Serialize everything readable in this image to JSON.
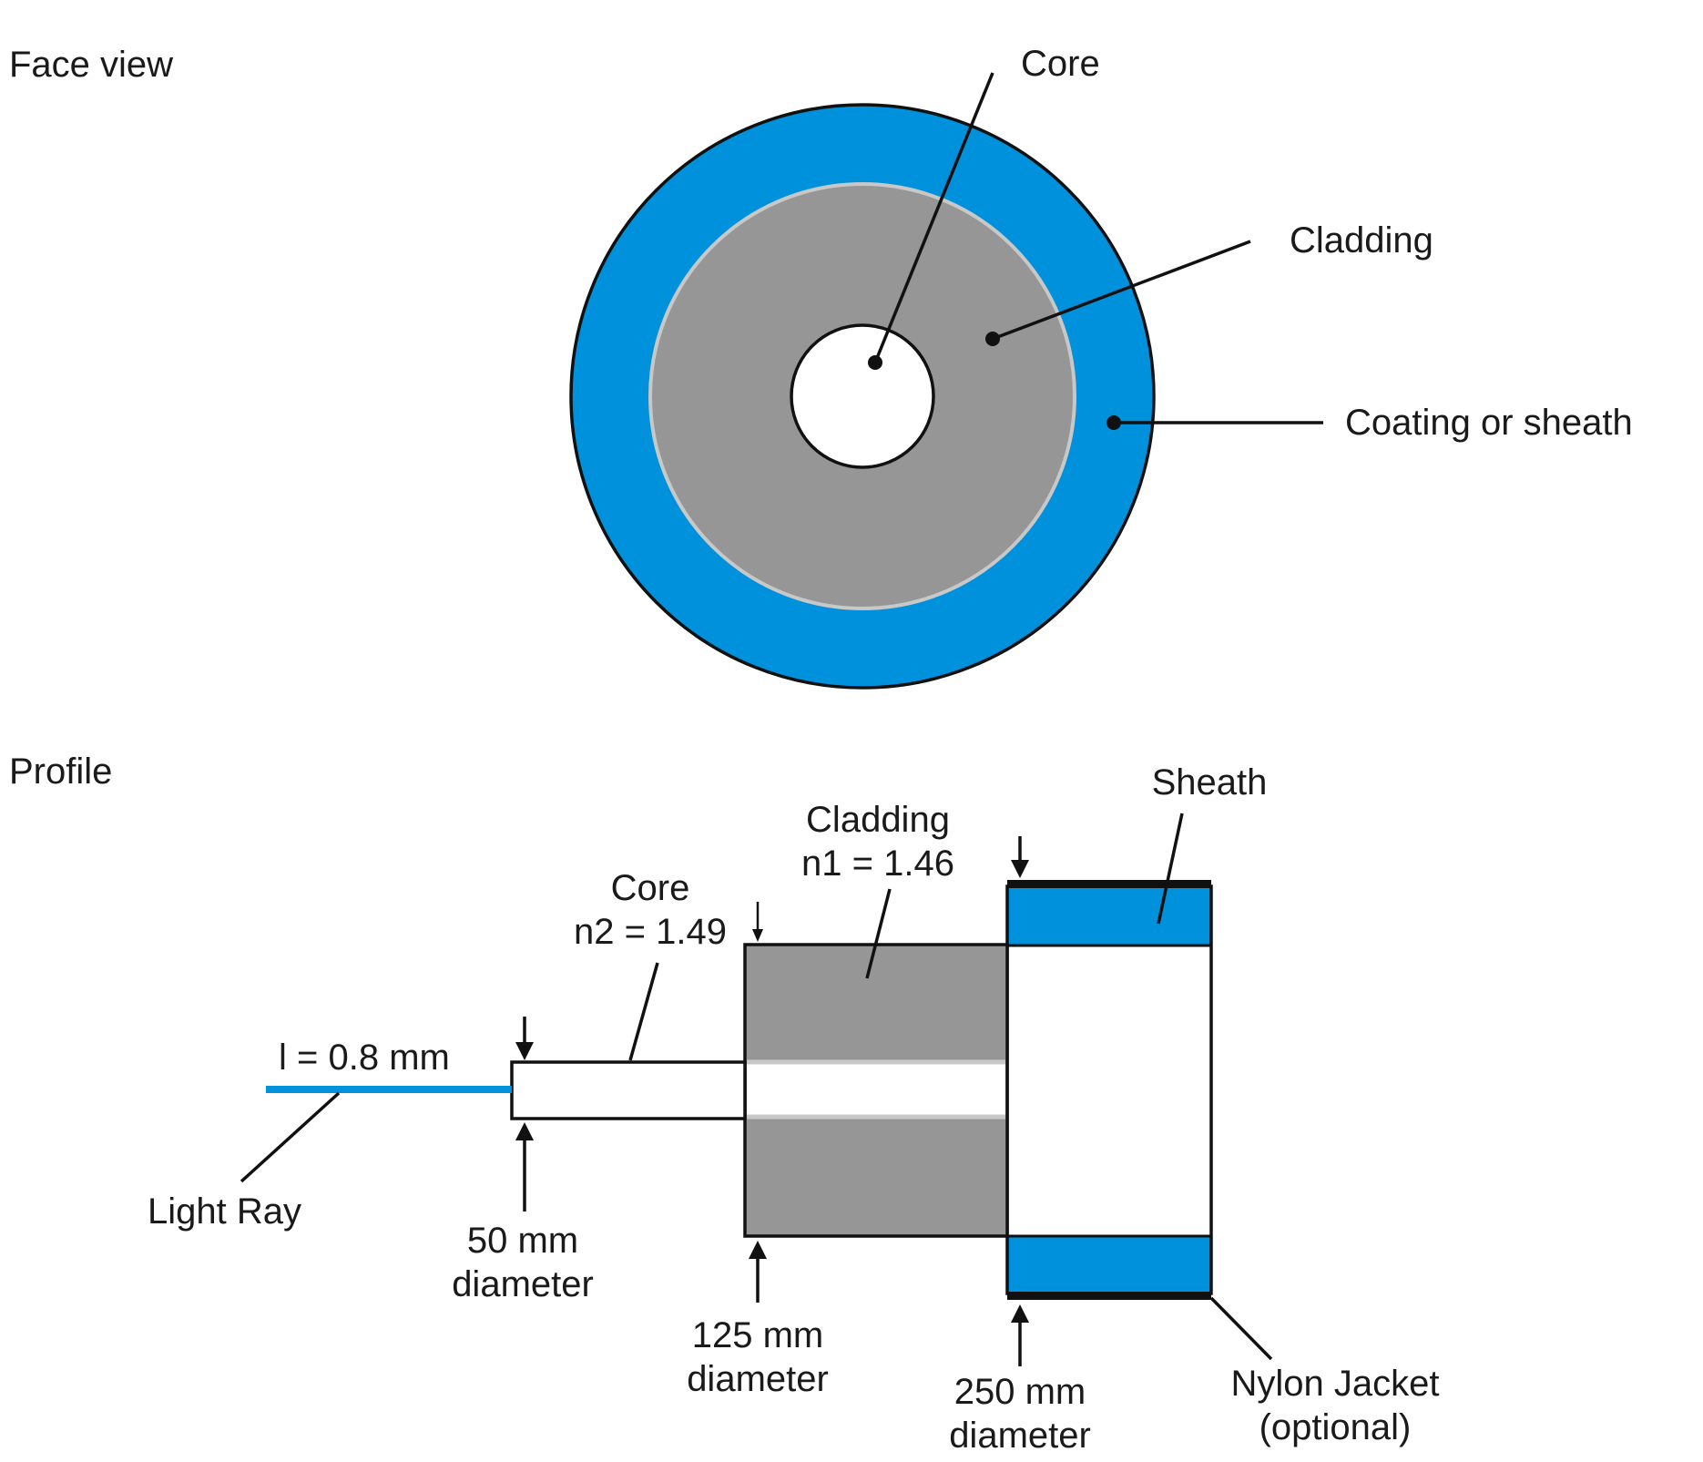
{
  "colors": {
    "sheath_blue": "#0091dc",
    "cladding_gray": "#969696",
    "cladding_rim": "#c8c8c8",
    "core_white": "#ffffff",
    "outline": "#111111",
    "light_ray": "#0091dc"
  },
  "face_view": {
    "title": "Face view",
    "labels": {
      "core": "Core",
      "cladding": "Cladding",
      "coating": "Coating or sheath"
    }
  },
  "profile": {
    "title": "Profile",
    "labels": {
      "sheath": "Sheath",
      "cladding": "Cladding",
      "cladding_index": "n1 = 1.46",
      "core": "Core",
      "core_index": "n2 = 1.49",
      "wavelength": "l = 0.8 mm",
      "light_ray": "Light Ray",
      "core_diameter_value": "50 mm",
      "core_diameter_word": "diameter",
      "cladding_diameter_value": "125 mm",
      "cladding_diameter_word": "diameter",
      "sheath_diameter_value": "250 mm",
      "sheath_diameter_word": "diameter",
      "jacket": "Nylon Jacket",
      "jacket_note": "(optional)"
    }
  }
}
